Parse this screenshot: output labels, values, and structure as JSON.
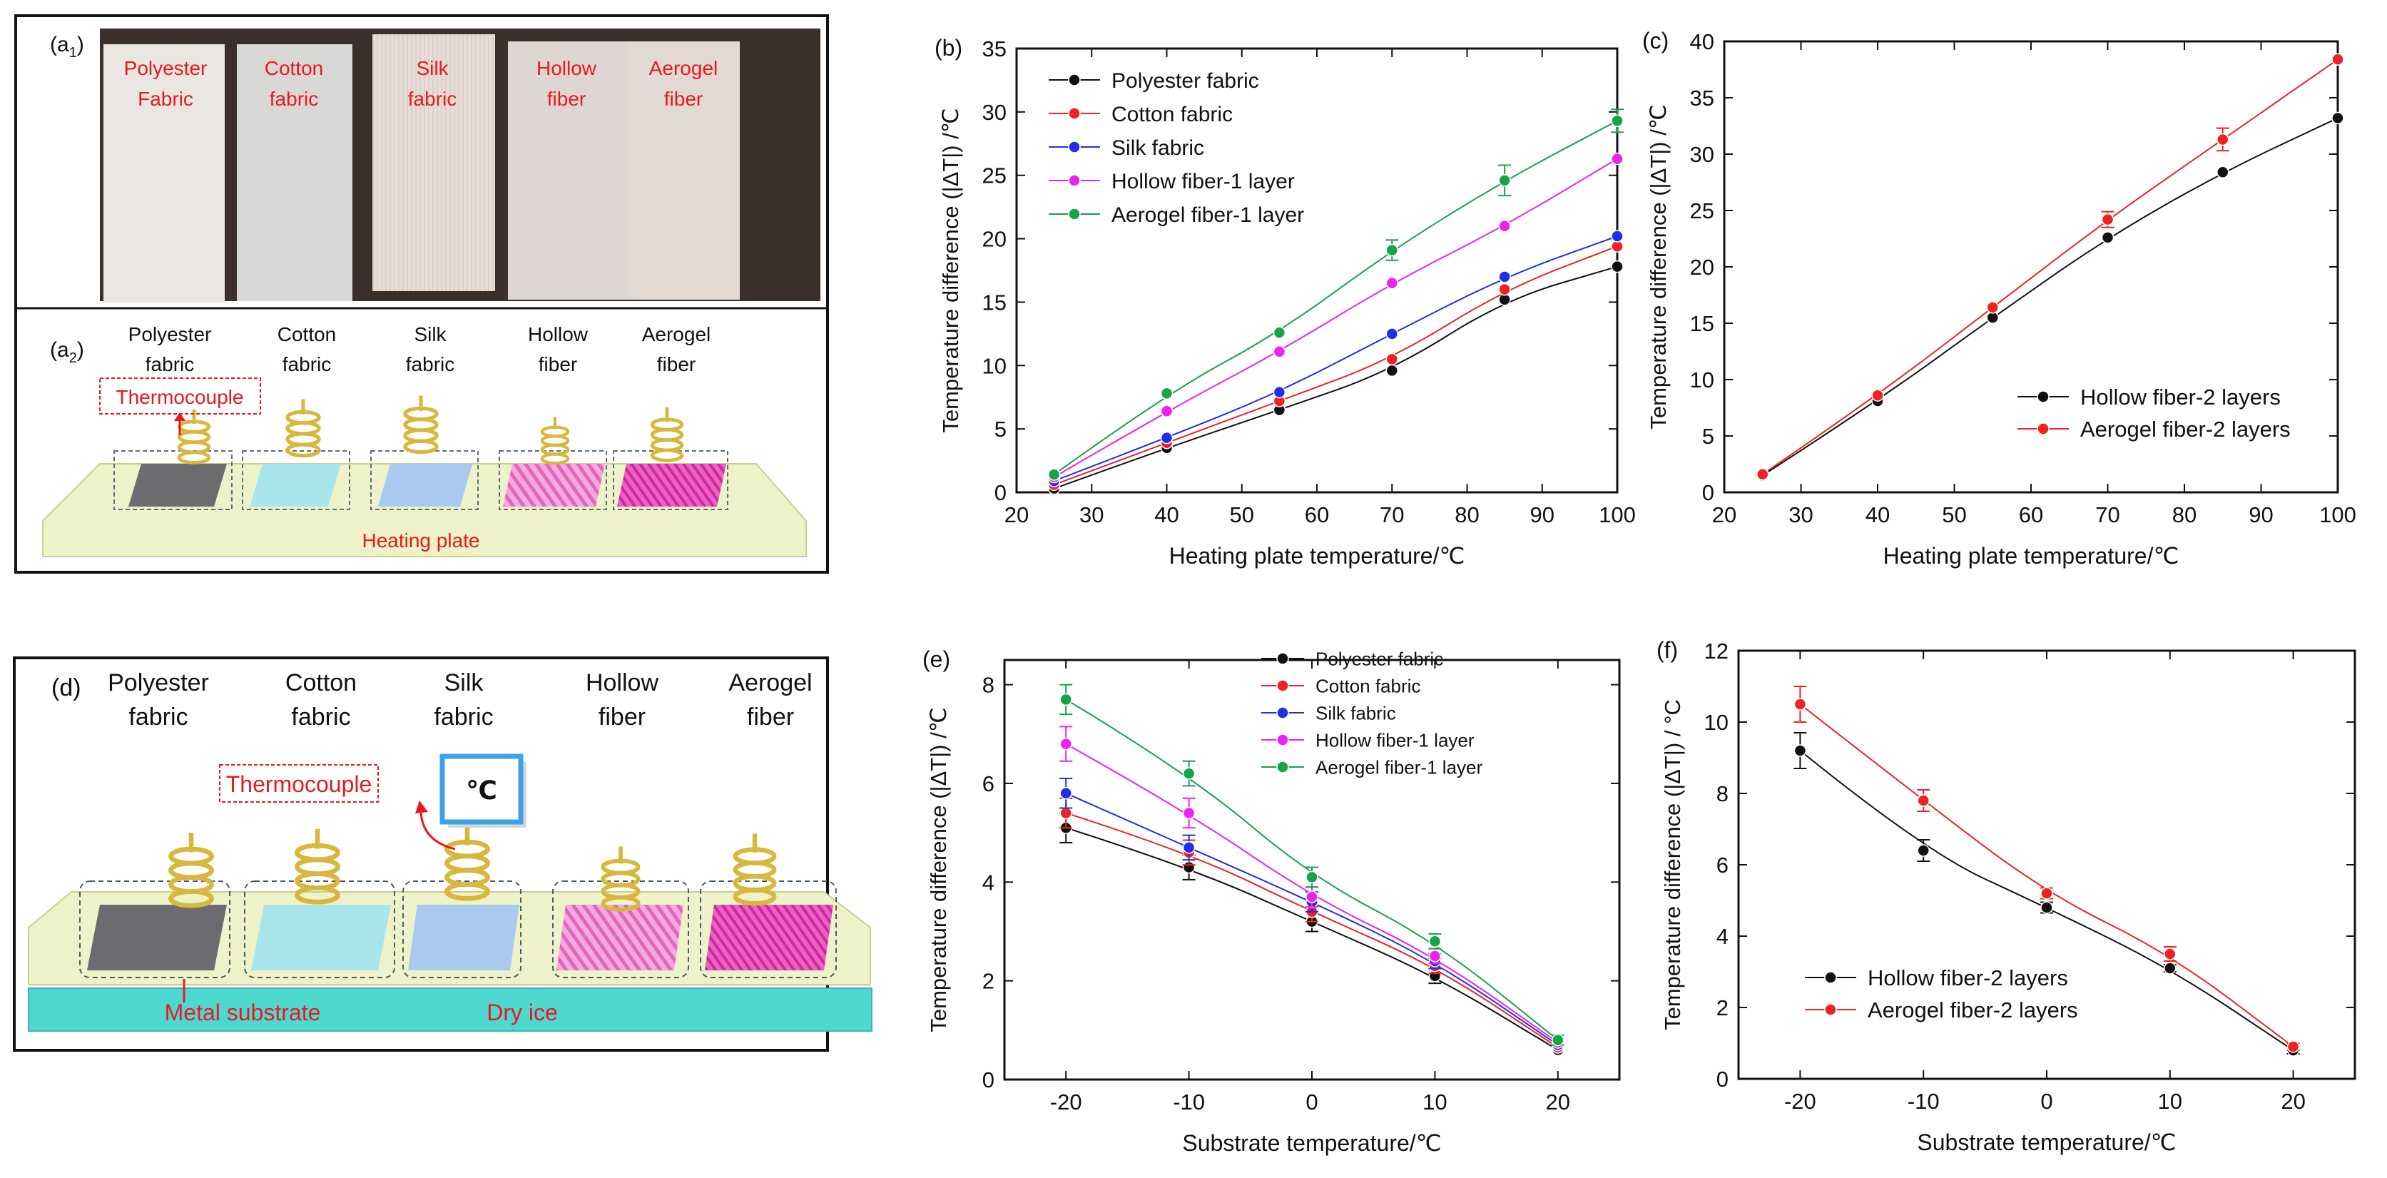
{
  "panels": {
    "a1": {
      "label_main": "(a",
      "label_sub": "1",
      "label_end": ")",
      "samples": [
        [
          "Polyester",
          "Fabric"
        ],
        [
          "Cotton",
          "fabric"
        ],
        [
          "Silk",
          "fabric"
        ],
        [
          "Hollow",
          "fiber"
        ],
        [
          "Aerogel",
          "fiber"
        ]
      ]
    },
    "a2": {
      "label_main": "(a",
      "label_sub": "2",
      "label_end": ")",
      "samples": [
        [
          "Polyester",
          "fabric"
        ],
        [
          "Cotton",
          "fabric"
        ],
        [
          "Silk",
          "fabric"
        ],
        [
          "Hollow",
          "fiber"
        ],
        [
          "Aerogel",
          "fiber"
        ]
      ],
      "thermocouple": "Thermocouple",
      "plate": "Heating plate"
    },
    "d": {
      "label": "(d)",
      "samples": [
        [
          "Polyester",
          "fabric"
        ],
        [
          "Cotton",
          "fabric"
        ],
        [
          "Silk",
          "fabric"
        ],
        [
          "Hollow",
          "fiber"
        ],
        [
          "Aerogel",
          "fiber"
        ]
      ],
      "thermocouple": "Thermocouple",
      "display": "℃",
      "substrate": "Metal substrate",
      "ice": "Dry ice"
    }
  },
  "colors": {
    "black": "#111111",
    "red": "#ee2222",
    "blue": "#1f2fe8",
    "magenta": "#ee22ee",
    "green": "#16a34a",
    "annot": "#e8191d"
  },
  "chart_data": [
    {
      "id": "b",
      "label": "(b)",
      "type": "line",
      "xlabel": "Heating plate temperature/℃",
      "ylabel": "Temperature difference (|ΔT|) /℃",
      "xlim": [
        20,
        100
      ],
      "ylim": [
        0,
        35
      ],
      "xticks": [
        20,
        30,
        40,
        50,
        60,
        70,
        80,
        90,
        100
      ],
      "yticks": [
        0,
        5,
        10,
        15,
        20,
        25,
        30,
        35
      ],
      "x": [
        25,
        40,
        55,
        70,
        85,
        100
      ],
      "legend": "top-left",
      "series": [
        {
          "name": "Polyester fabric",
          "color": "black",
          "values": [
            0.3,
            3.5,
            6.5,
            9.6,
            15.2,
            17.8
          ]
        },
        {
          "name": "Cotton fabric",
          "color": "red",
          "values": [
            0.6,
            3.9,
            7.2,
            10.5,
            16.0,
            19.4
          ]
        },
        {
          "name": "Silk fabric",
          "color": "blue",
          "values": [
            0.9,
            4.3,
            7.9,
            12.5,
            17.0,
            20.2
          ]
        },
        {
          "name": "Hollow fiber-1 layer",
          "color": "magenta",
          "values": [
            1.2,
            6.4,
            11.1,
            16.5,
            21.0,
            26.3
          ]
        },
        {
          "name": "Aerogel fiber-1 layer",
          "color": "green",
          "values": [
            1.4,
            7.8,
            12.6,
            19.1,
            24.6,
            29.3
          ],
          "errors": [
            0,
            0,
            0,
            0.8,
            1.2,
            0.9
          ]
        }
      ]
    },
    {
      "id": "c",
      "label": "(c)",
      "type": "line",
      "xlabel": "Heating plate temperature/℃",
      "ylabel": "Temperature difference (|ΔT|) /℃",
      "xlim": [
        20,
        100
      ],
      "ylim": [
        0,
        40
      ],
      "xticks": [
        20,
        30,
        40,
        50,
        60,
        70,
        80,
        90,
        100
      ],
      "yticks": [
        0,
        5,
        10,
        15,
        20,
        25,
        30,
        35,
        40
      ],
      "x": [
        25,
        40,
        55,
        70,
        85,
        100
      ],
      "legend": "bottom-right",
      "series": [
        {
          "name": "Hollow fiber-2 layers",
          "color": "black",
          "values": [
            1.5,
            8.1,
            15.5,
            22.6,
            28.4,
            33.2
          ]
        },
        {
          "name": "Aerogel fiber-2 layers",
          "color": "red",
          "values": [
            1.6,
            8.6,
            16.4,
            24.2,
            31.3,
            38.4
          ],
          "errors": [
            0,
            0,
            0,
            0.7,
            1.0,
            0
          ]
        }
      ]
    },
    {
      "id": "e",
      "label": "(e)",
      "type": "line",
      "xlabel": "Substrate temperature/℃",
      "ylabel": "Temperature difference (|ΔT|) /℃",
      "xlim": [
        -25,
        25
      ],
      "ylim": [
        0,
        8.5
      ],
      "xticks": [
        -20,
        -10,
        0,
        10,
        20
      ],
      "yticks": [
        0,
        2,
        4,
        6,
        8
      ],
      "x": [
        -20,
        -10,
        0,
        10,
        20
      ],
      "legend": "top-right",
      "series": [
        {
          "name": "Polyester fabric",
          "color": "black",
          "values": [
            5.1,
            4.3,
            3.2,
            2.1,
            0.6
          ],
          "errors": [
            0.3,
            0.25,
            0.2,
            0.15,
            0
          ]
        },
        {
          "name": "Cotton fabric",
          "color": "red",
          "values": [
            5.4,
            4.6,
            3.4,
            2.3,
            0.65
          ],
          "errors": [
            0.3,
            0.25,
            0.2,
            0.15,
            0
          ]
        },
        {
          "name": "Silk fabric",
          "color": "blue",
          "values": [
            5.8,
            4.7,
            3.6,
            2.4,
            0.7
          ],
          "errors": [
            0.3,
            0.25,
            0.2,
            0.15,
            0
          ]
        },
        {
          "name": "Hollow fiber-1 layer",
          "color": "magenta",
          "values": [
            6.8,
            5.4,
            3.7,
            2.5,
            0.75
          ],
          "errors": [
            0.35,
            0.3,
            0.2,
            0.15,
            0
          ]
        },
        {
          "name": "Aerogel fiber-1 layer",
          "color": "green",
          "values": [
            7.7,
            6.2,
            4.1,
            2.8,
            0.8
          ],
          "errors": [
            0.3,
            0.25,
            0.2,
            0.15,
            0.1
          ]
        }
      ]
    },
    {
      "id": "f",
      "label": "(f)",
      "type": "line",
      "xlabel": "Substrate temperature/℃",
      "ylabel": "Temperature difference (|ΔT|) / °C",
      "xlim": [
        -25,
        25
      ],
      "ylim": [
        0,
        12
      ],
      "xticks": [
        -20,
        -10,
        0,
        10,
        20
      ],
      "yticks": [
        0,
        2,
        4,
        6,
        8,
        10,
        12
      ],
      "x": [
        -20,
        -10,
        0,
        10,
        20
      ],
      "legend": "bottom-left",
      "series": [
        {
          "name": "Hollow fiber-2 layers",
          "color": "black",
          "values": [
            9.2,
            6.4,
            4.8,
            3.1,
            0.8
          ],
          "errors": [
            0.5,
            0.3,
            0.15,
            0.1,
            0.1
          ]
        },
        {
          "name": "Aerogel fiber-2 layers",
          "color": "red",
          "values": [
            10.5,
            7.8,
            5.2,
            3.5,
            0.9
          ],
          "errors": [
            0.5,
            0.3,
            0.15,
            0.2,
            0.1
          ]
        }
      ]
    }
  ]
}
